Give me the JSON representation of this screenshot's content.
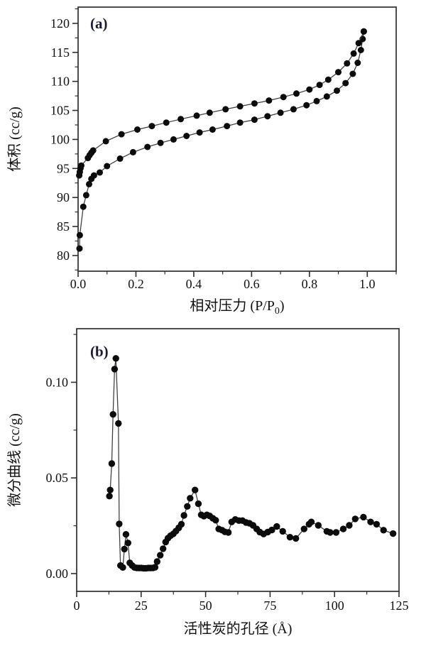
{
  "colors": {
    "background": "#ffffff",
    "marker": "#0b0b0b",
    "line": "#3c3c3c",
    "frame": "#2e2e2e",
    "text": "#111111",
    "panel_label": "#1c1c30"
  },
  "chart_data": [
    {
      "id": "a",
      "type": "line",
      "panel_label": "(a)",
      "xlabel_prefix": "相对压力 (P/P",
      "xlabel_sub": "0",
      "xlabel_suffix": ")",
      "ylabel": "体积 (cc/g)",
      "xlim": [
        0,
        1.1
      ],
      "ylim": [
        77.3,
        122.8
      ],
      "grid": false,
      "legend": null,
      "xticks": [
        {
          "v": 0.0,
          "label": "0.0"
        },
        {
          "v": 0.2,
          "label": "0.2"
        },
        {
          "v": 0.4,
          "label": "0.4"
        },
        {
          "v": 0.6,
          "label": "0.6"
        },
        {
          "v": 0.8,
          "label": "0.8"
        },
        {
          "v": 1.0,
          "label": "1.0"
        }
      ],
      "xminors": [
        0.1,
        0.3,
        0.5,
        0.7,
        0.9,
        1.1
      ],
      "yticks": [
        {
          "v": 80,
          "label": "80"
        },
        {
          "v": 85,
          "label": "85"
        },
        {
          "v": 90,
          "label": "90"
        },
        {
          "v": 95,
          "label": "95"
        },
        {
          "v": 100,
          "label": "100"
        },
        {
          "v": 105,
          "label": "105"
        },
        {
          "v": 110,
          "label": "110"
        },
        {
          "v": 115,
          "label": "115"
        },
        {
          "v": 120,
          "label": "120"
        }
      ],
      "yminors": [
        77.5,
        82.5,
        87.5,
        92.5,
        97.5,
        102.5,
        107.5,
        112.5,
        117.5,
        122.5
      ],
      "series": [
        {
          "name": "adsorption-branch",
          "points": [
            [
              0.005,
              81.2
            ],
            [
              0.006,
              83.5
            ],
            [
              0.018,
              88.4
            ],
            [
              0.028,
              90.4
            ],
            [
              0.038,
              92.3
            ],
            [
              0.046,
              93.2
            ],
            [
              0.055,
              93.8
            ],
            [
              0.075,
              94.3
            ],
            [
              0.1,
              95.4
            ],
            [
              0.145,
              96.7
            ],
            [
              0.19,
              97.8
            ],
            [
              0.24,
              98.7
            ],
            [
              0.285,
              99.4
            ],
            [
              0.33,
              100.0
            ],
            [
              0.375,
              100.6
            ],
            [
              0.42,
              101.2
            ],
            [
              0.465,
              101.7
            ],
            [
              0.515,
              102.3
            ],
            [
              0.56,
              102.9
            ],
            [
              0.61,
              103.4
            ],
            [
              0.655,
              104.0
            ],
            [
              0.7,
              104.6
            ],
            [
              0.745,
              105.2
            ],
            [
              0.79,
              105.9
            ],
            [
              0.825,
              106.6
            ],
            [
              0.86,
              107.4
            ],
            [
              0.895,
              108.4
            ],
            [
              0.925,
              109.7
            ],
            [
              0.95,
              111.3
            ],
            [
              0.967,
              113.2
            ],
            [
              0.978,
              115.4
            ],
            [
              0.984,
              117.3
            ],
            [
              0.988,
              118.6
            ]
          ]
        },
        {
          "name": "desorption-branch",
          "points": [
            [
              0.004,
              93.8
            ],
            [
              0.006,
              94.4
            ],
            [
              0.008,
              95.0
            ],
            [
              0.011,
              95.5
            ],
            [
              0.034,
              96.8
            ],
            [
              0.04,
              97.3
            ],
            [
              0.046,
              97.7
            ],
            [
              0.052,
              98.1
            ],
            [
              0.096,
              99.7
            ],
            [
              0.15,
              100.9
            ],
            [
              0.205,
              101.7
            ],
            [
              0.255,
              102.3
            ],
            [
              0.305,
              102.9
            ],
            [
              0.355,
              103.5
            ],
            [
              0.41,
              104.1
            ],
            [
              0.455,
              104.6
            ],
            [
              0.51,
              105.2
            ],
            [
              0.56,
              105.7
            ],
            [
              0.61,
              106.2
            ],
            [
              0.66,
              106.7
            ],
            [
              0.71,
              107.3
            ],
            [
              0.755,
              107.9
            ],
            [
              0.8,
              108.6
            ],
            [
              0.835,
              109.4
            ],
            [
              0.865,
              110.3
            ],
            [
              0.9,
              111.6
            ],
            [
              0.93,
              113.1
            ],
            [
              0.953,
              114.8
            ],
            [
              0.97,
              116.6
            ],
            [
              0.988,
              118.6
            ]
          ]
        }
      ]
    },
    {
      "id": "b",
      "type": "line",
      "panel_label": "(b)",
      "xlabel": "活性炭的孔径 (Å)",
      "ylabel": "微分曲线 (cc/g)",
      "xlim": [
        0,
        125
      ],
      "ylim": [
        -0.0093,
        0.128
      ],
      "grid": false,
      "legend": null,
      "xticks": [
        {
          "v": 0,
          "label": "0"
        },
        {
          "v": 25,
          "label": "25"
        },
        {
          "v": 50,
          "label": "50"
        },
        {
          "v": 75,
          "label": "75"
        },
        {
          "v": 100,
          "label": "100"
        },
        {
          "v": 125,
          "label": "125"
        }
      ],
      "xminors": [
        12.5,
        37.5,
        62.5,
        87.5,
        112.5
      ],
      "yticks": [
        {
          "v": 0.0,
          "label": "0.00"
        },
        {
          "v": 0.05,
          "label": "0.05"
        },
        {
          "v": 0.1,
          "label": "0.10"
        }
      ],
      "yminors": [
        0.025,
        0.075,
        0.125
      ],
      "series": [
        {
          "name": "pore-size-distribution",
          "points": [
            [
              12.7,
              0.0405
            ],
            [
              13.0,
              0.0437
            ],
            [
              13.6,
              0.0575
            ],
            [
              14.1,
              0.0832
            ],
            [
              14.7,
              0.1069
            ],
            [
              15.2,
              0.1125
            ],
            [
              16.2,
              0.0785
            ],
            [
              16.5,
              0.026
            ],
            [
              17.0,
              0.0042
            ],
            [
              17.9,
              0.0032
            ],
            [
              18.5,
              0.0128
            ],
            [
              19.1,
              0.0205
            ],
            [
              19.9,
              0.016
            ],
            [
              20.6,
              0.0056
            ],
            [
              21.5,
              0.0042
            ],
            [
              22.4,
              0.0032
            ],
            [
              23.3,
              0.003
            ],
            [
              24.2,
              0.0029
            ],
            [
              25.1,
              0.0029
            ],
            [
              26.0,
              0.0028
            ],
            [
              26.9,
              0.0028
            ],
            [
              27.8,
              0.0029
            ],
            [
              28.7,
              0.0029
            ],
            [
              29.6,
              0.003
            ],
            [
              30.4,
              0.0033
            ],
            [
              31.2,
              0.0063
            ],
            [
              32.4,
              0.0096
            ],
            [
              33.5,
              0.013
            ],
            [
              34.5,
              0.0165
            ],
            [
              35.4,
              0.0185
            ],
            [
              36.4,
              0.0198
            ],
            [
              37.5,
              0.0208
            ],
            [
              38.5,
              0.0222
            ],
            [
              39.6,
              0.0239
            ],
            [
              40.6,
              0.0258
            ],
            [
              41.6,
              0.0304
            ],
            [
              42.9,
              0.0351
            ],
            [
              44.0,
              0.0394
            ],
            [
              45.9,
              0.0437
            ],
            [
              47.2,
              0.0365
            ],
            [
              48.3,
              0.0307
            ],
            [
              49.3,
              0.03
            ],
            [
              50.5,
              0.0307
            ],
            [
              51.6,
              0.0301
            ],
            [
              52.8,
              0.0289
            ],
            [
              53.9,
              0.0279
            ],
            [
              55.1,
              0.0233
            ],
            [
              56.4,
              0.0227
            ],
            [
              57.5,
              0.0218
            ],
            [
              58.8,
              0.0215
            ],
            [
              60.1,
              0.027
            ],
            [
              61.5,
              0.0283
            ],
            [
              62.9,
              0.0277
            ],
            [
              64.3,
              0.0277
            ],
            [
              65.7,
              0.0267
            ],
            [
              67.0,
              0.0263
            ],
            [
              68.4,
              0.0252
            ],
            [
              69.8,
              0.0233
            ],
            [
              71.0,
              0.0217
            ],
            [
              72.5,
              0.0207
            ],
            [
              74.1,
              0.0217
            ],
            [
              75.7,
              0.0228
            ],
            [
              77.6,
              0.0246
            ],
            [
              79.9,
              0.0221
            ],
            [
              82.7,
              0.019
            ],
            [
              85.0,
              0.0184
            ],
            [
              88.2,
              0.0233
            ],
            [
              90.1,
              0.0258
            ],
            [
              91.0,
              0.027
            ],
            [
              93.7,
              0.0252
            ],
            [
              97.0,
              0.0221
            ],
            [
              98.3,
              0.0215
            ],
            [
              100.6,
              0.0215
            ],
            [
              103.4,
              0.0233
            ],
            [
              105.7,
              0.0252
            ],
            [
              108.0,
              0.0286
            ],
            [
              111.2,
              0.0295
            ],
            [
              114.0,
              0.027
            ],
            [
              116.3,
              0.0258
            ],
            [
              119.0,
              0.0227
            ],
            [
              122.7,
              0.0209
            ]
          ]
        }
      ]
    }
  ]
}
